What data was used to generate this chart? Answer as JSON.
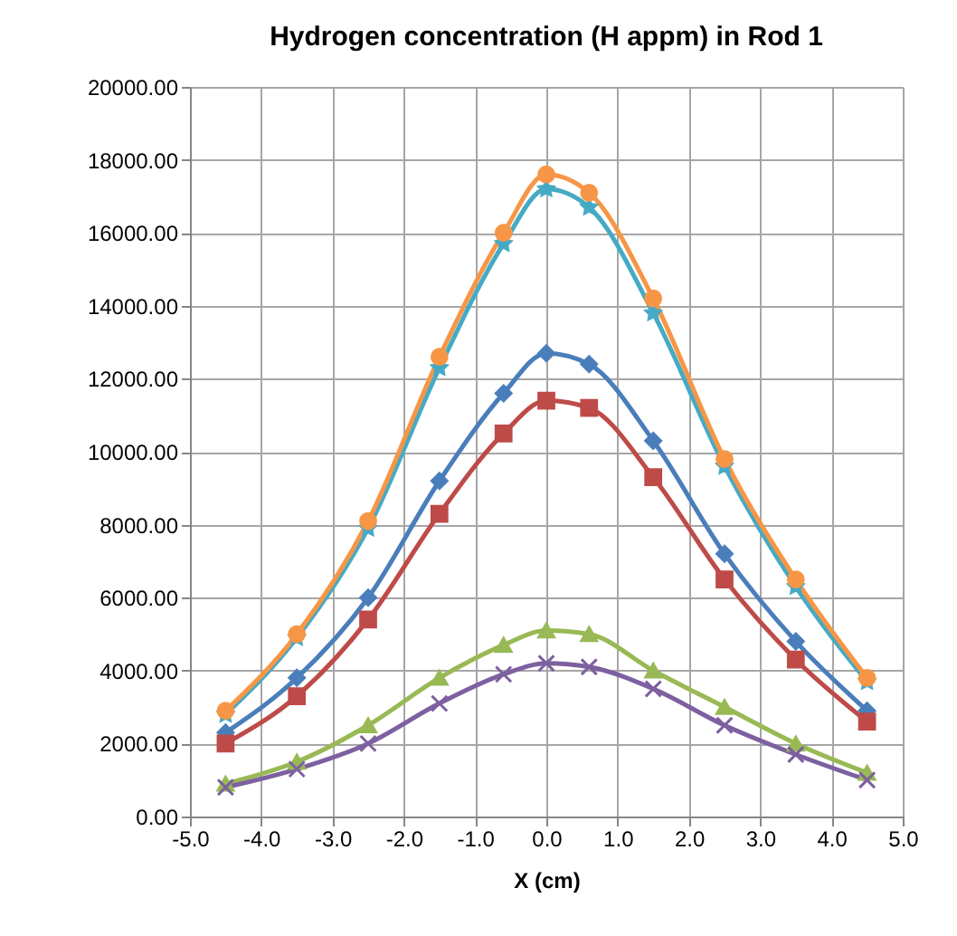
{
  "chart_data": {
    "type": "line",
    "title": "Hydrogen concentration (H appm) in Rod 1",
    "xlabel": "X (cm)",
    "x": [
      -4.5,
      -3.5,
      -2.5,
      -1.5,
      -0.6,
      0,
      0.6,
      1.5,
      2.5,
      3.5,
      4.5
    ],
    "series": [
      {
        "color": "#4a7ebb",
        "marker": "diamond",
        "values": [
          2300,
          3800,
          6000,
          9200,
          11600,
          12700,
          12400,
          10300,
          7200,
          4800,
          2900
        ]
      },
      {
        "color": "#be4b48",
        "marker": "square",
        "values": [
          2000,
          3300,
          5400,
          8300,
          10500,
          11400,
          11200,
          9300,
          6500,
          4300,
          2600
        ]
      },
      {
        "color": "#98b954",
        "marker": "triangle",
        "values": [
          900,
          1500,
          2500,
          3800,
          4700,
          5100,
          5000,
          4000,
          3000,
          2000,
          1200
        ]
      },
      {
        "color": "#7d60a0",
        "marker": "cross",
        "values": [
          800,
          1300,
          2000,
          3100,
          3900,
          4200,
          4100,
          3500,
          2500,
          1700,
          1000
        ]
      },
      {
        "color": "#46aac5",
        "marker": "star",
        "values": [
          2800,
          4900,
          7900,
          12300,
          15700,
          17200,
          16700,
          13800,
          9600,
          6300,
          3700
        ]
      },
      {
        "color": "#f79646",
        "marker": "circle",
        "values": [
          2900,
          5000,
          8100,
          12600,
          16000,
          17600,
          17100,
          14200,
          9800,
          6500,
          3800
        ]
      }
    ],
    "xlim": [
      -5,
      5
    ],
    "xticks": [
      {
        "value": -5,
        "label": "-5.0"
      },
      {
        "value": -4,
        "label": "-4.0"
      },
      {
        "value": -3,
        "label": "-3.0"
      },
      {
        "value": -2,
        "label": "-2.0"
      },
      {
        "value": -1,
        "label": "-1.0"
      },
      {
        "value": 0,
        "label": "0.0"
      },
      {
        "value": 1,
        "label": "1.0"
      },
      {
        "value": 2,
        "label": "2.0"
      },
      {
        "value": 3,
        "label": "3.0"
      },
      {
        "value": 4,
        "label": "4.0"
      },
      {
        "value": 5,
        "label": "5.0"
      }
    ],
    "ylim": [
      0,
      20000
    ],
    "yticks": [
      {
        "value": 0,
        "label": "0.00"
      },
      {
        "value": 2000,
        "label": "2000.00"
      },
      {
        "value": 4000,
        "label": "4000.00"
      },
      {
        "value": 6000,
        "label": "6000.00"
      },
      {
        "value": 8000,
        "label": "8000.00"
      },
      {
        "value": 10000,
        "label": "10000.00"
      },
      {
        "value": 12000,
        "label": "12000.00"
      },
      {
        "value": 14000,
        "label": "14000.00"
      },
      {
        "value": 16000,
        "label": "16000.00"
      },
      {
        "value": 18000,
        "label": "18000.00"
      },
      {
        "value": 20000,
        "label": "20000.00"
      }
    ],
    "grid": true,
    "legend": false,
    "line_style": "solid"
  }
}
